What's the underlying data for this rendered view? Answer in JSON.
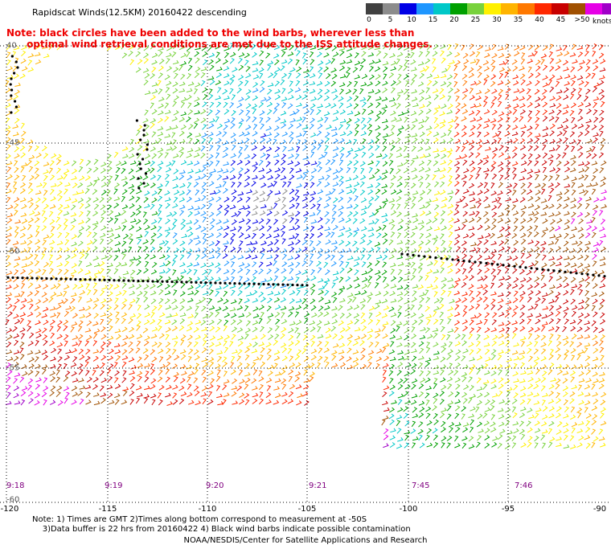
{
  "title": "Rapidscat Winds(12.5KM) 20160422 descending",
  "note": "Note: black circles have been added to the wind barbs, wherever less than\n      optimal wind retrieval conditions are met due to the ISS attitude changes.",
  "legend": {
    "colors": [
      "#404040",
      "#8c8c8c",
      "#0000e6",
      "#1e96ff",
      "#00c8c8",
      "#00a000",
      "#78d23c",
      "#fff000",
      "#ffb400",
      "#ff7800",
      "#ff2800",
      "#c80000",
      "#a05000",
      "#e600e6",
      "#a000c8",
      "#500096"
    ],
    "labels": [
      "0",
      "5",
      "10",
      "15",
      "20",
      "25",
      "30",
      "35",
      "40",
      "45",
      ">50"
    ],
    "unit": "knots"
  },
  "x_ticks": [
    "-120",
    "-115",
    "-110",
    "-105",
    "-100",
    "-95",
    "-90"
  ],
  "lat_ticks": [
    "-45",
    "-50",
    "-55",
    "-60"
  ],
  "lat_top": "40",
  "times": [
    "9:18",
    "9:19",
    "9:20",
    "9:21",
    "7:45",
    "7:46"
  ],
  "footer": {
    "line1": "Note: 1) Times are GMT 2)Times along bottom correspond to measurement at -50S",
    "line2": "3)Data buffer is 22 hrs from 20160422 4) Black wind barbs indicate possible contamination",
    "credit": "NOAA/NESDIS/Center for Satellite Applications and Research"
  }
}
